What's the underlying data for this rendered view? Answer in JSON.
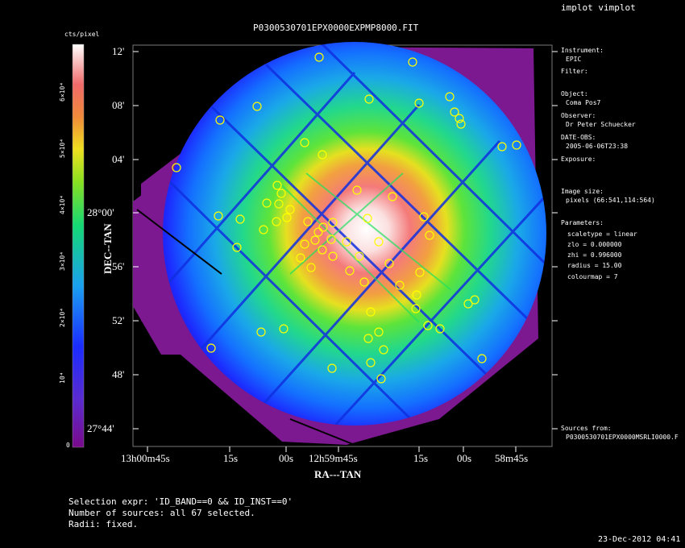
{
  "header": {
    "app_title": "implot vimplot",
    "plot_title": "P0300530701EPX0000EXPMP8000.FIT"
  },
  "colorbar": {
    "unit": "cts/pixel",
    "ticks": [
      "0",
      "10⁴",
      "2×10⁴",
      "3×10⁴",
      "4×10⁴",
      "5×10⁴",
      "6×10⁴"
    ]
  },
  "side_panel": {
    "instrument_label": "Instrument:",
    "instrument_value": "EPIC",
    "filter_label": "Filter:",
    "object_label": "Object:",
    "object_value": "Coma Pos7",
    "observer_label": "Observer:",
    "observer_value": "Dr Peter Schuecker",
    "date_label": "DATE-OBS:",
    "date_value": "2005-06-06T23:38",
    "exposure_label": "Exposure:",
    "image_size_label": "Image size:",
    "image_size_value": "pixels (66:541,114:564)",
    "parameters_label": "Parameters:",
    "param_scaletype": "scaletype = linear",
    "param_zlo": "zlo = 0.000000",
    "param_zhi": "zhi = 0.996000",
    "param_radius": "radius = 15.00",
    "param_colourmap": "colourmap = 7",
    "sources_label": "Sources from:",
    "sources_value": "P0300530701EPX0000MSRLI0000.F"
  },
  "footer": {
    "selection": "Selection expr: 'ID_BAND==0 && ID_INST==0'",
    "num_sources": "Number of sources: all 67 selected.",
    "radii": "Radii: fixed.",
    "timestamp": "23-Dec-2012 04:41"
  },
  "chart_data": {
    "type": "heatmap",
    "title": "P0300530701EPX0000EXPMP8000.FIT",
    "xlabel": "RA---TAN",
    "ylabel": "DEC--TAN",
    "x_ticks": [
      "13h00m45s",
      "15s",
      "00s",
      "12h59m45s",
      "15s",
      "00s",
      "58m45s"
    ],
    "y_ticks": [
      "12'",
      "08'",
      "04'",
      "28°00'",
      "56'",
      "52'",
      "48'",
      "27°44'"
    ],
    "colormap": "rainbow",
    "zlim": [
      0,
      65000
    ],
    "grid": false
  }
}
